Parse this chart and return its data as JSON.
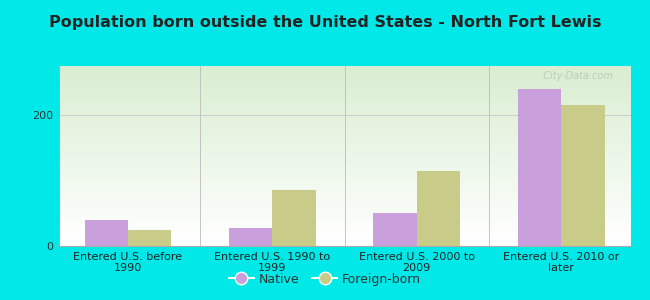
{
  "title": "Population born outside the United States - North Fort Lewis",
  "categories": [
    "Entered U.S. before\n1990",
    "Entered U.S. 1990 to\n1999",
    "Entered U.S. 2000 to\n2009",
    "Entered U.S. 2010 or\nlater"
  ],
  "native_values": [
    40,
    28,
    50,
    240
  ],
  "foreign_values": [
    25,
    85,
    115,
    215
  ],
  "native_color": "#c9a0dc",
  "foreign_color": "#c8cc88",
  "ylim": [
    0,
    275
  ],
  "yticks": [
    0,
    200
  ],
  "background_outer": "#00e8e8",
  "grid_color": "#cccccc",
  "title_fontsize": 11.5,
  "tick_fontsize": 8,
  "legend_fontsize": 9,
  "bar_width": 0.3,
  "watermark": "  City-Data.com"
}
